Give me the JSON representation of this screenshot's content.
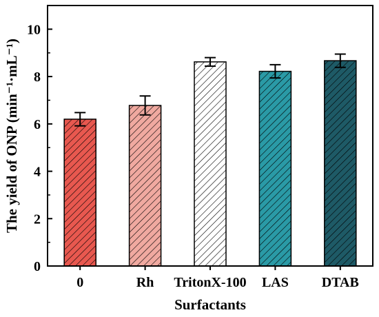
{
  "chart_data": {
    "type": "bar",
    "categories": [
      "0",
      "Rh",
      "TritonX-100",
      "LAS",
      "DTAB"
    ],
    "values": [
      6.2,
      6.78,
      8.62,
      8.22,
      8.67
    ],
    "errors": [
      0.28,
      0.4,
      0.18,
      0.28,
      0.28
    ],
    "colors": [
      "#e8584f",
      "#f0a9a0",
      "#ffffff",
      "#2a9aa6",
      "#1e5a66"
    ],
    "hatch": true,
    "xlabel": "Surfactants",
    "ylabel": "The yield of ONP (min⁻¹·mL⁻¹)",
    "ylim": [
      0,
      11
    ],
    "yticks": [
      "0",
      "2",
      "4",
      "6",
      "8",
      "10"
    ]
  }
}
